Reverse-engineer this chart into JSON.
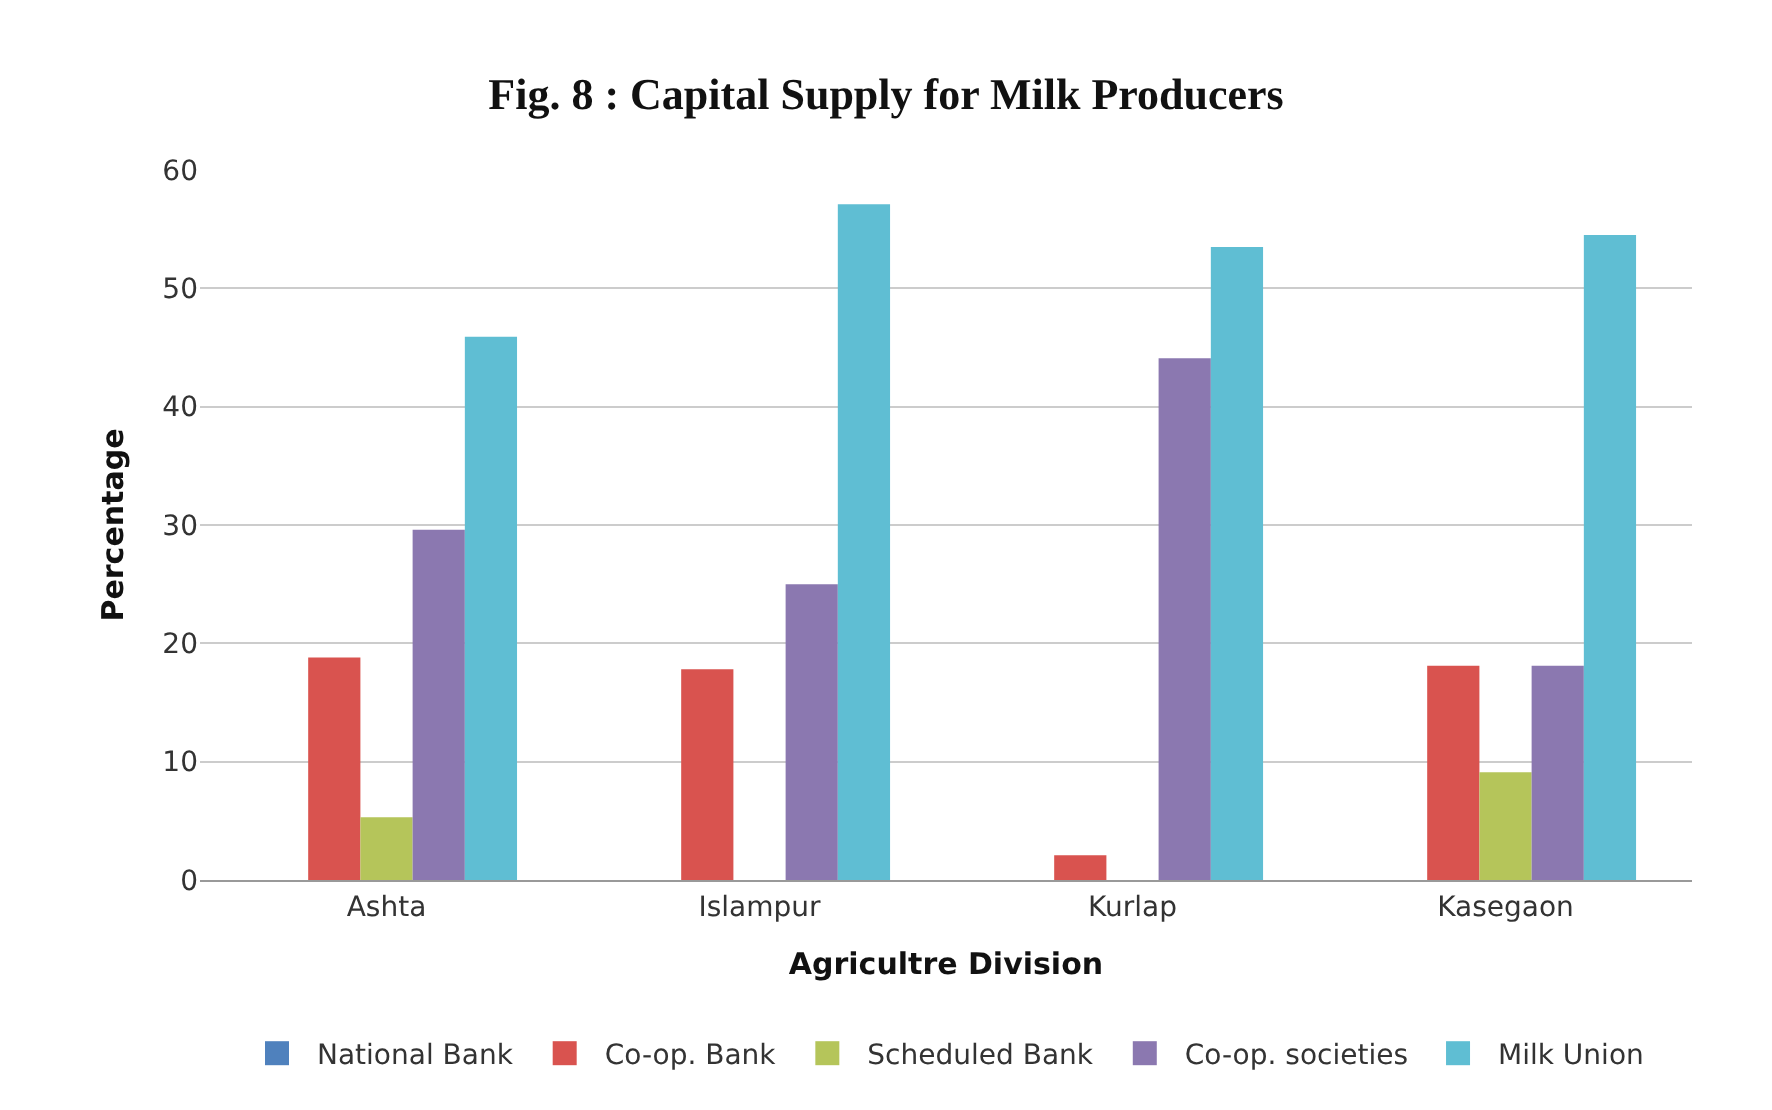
{
  "chart_data": {
    "type": "bar",
    "title": "Fig. 8 : Capital Supply for Milk Producers",
    "xlabel": "Agricultre Division",
    "ylabel": "Percentage",
    "categories": [
      "Ashta",
      "Islampur",
      "Kurlap",
      "Kasegaon"
    ],
    "series": [
      {
        "name": "National Bank",
        "color": "#4f81bd",
        "values": [
          0,
          0,
          0,
          0
        ]
      },
      {
        "name": "Co-op. Bank",
        "color": "#d9534f",
        "values": [
          18.8,
          17.8,
          2.1,
          18.1
        ]
      },
      {
        "name": "Scheduled Bank",
        "color": "#b5c55a",
        "values": [
          5.3,
          0,
          0,
          9.1
        ]
      },
      {
        "name": "Co-op. societies",
        "color": "#8b78b0",
        "values": [
          29.6,
          25.0,
          44.1,
          18.1
        ]
      },
      {
        "name": "Milk Union",
        "color": "#5fbed3",
        "values": [
          45.9,
          57.1,
          53.5,
          54.5
        ]
      }
    ],
    "ylim": [
      0,
      60
    ],
    "yticks": [
      0,
      10,
      20,
      30,
      40,
      50,
      60
    ],
    "grid": "y",
    "legend": "bottom"
  }
}
